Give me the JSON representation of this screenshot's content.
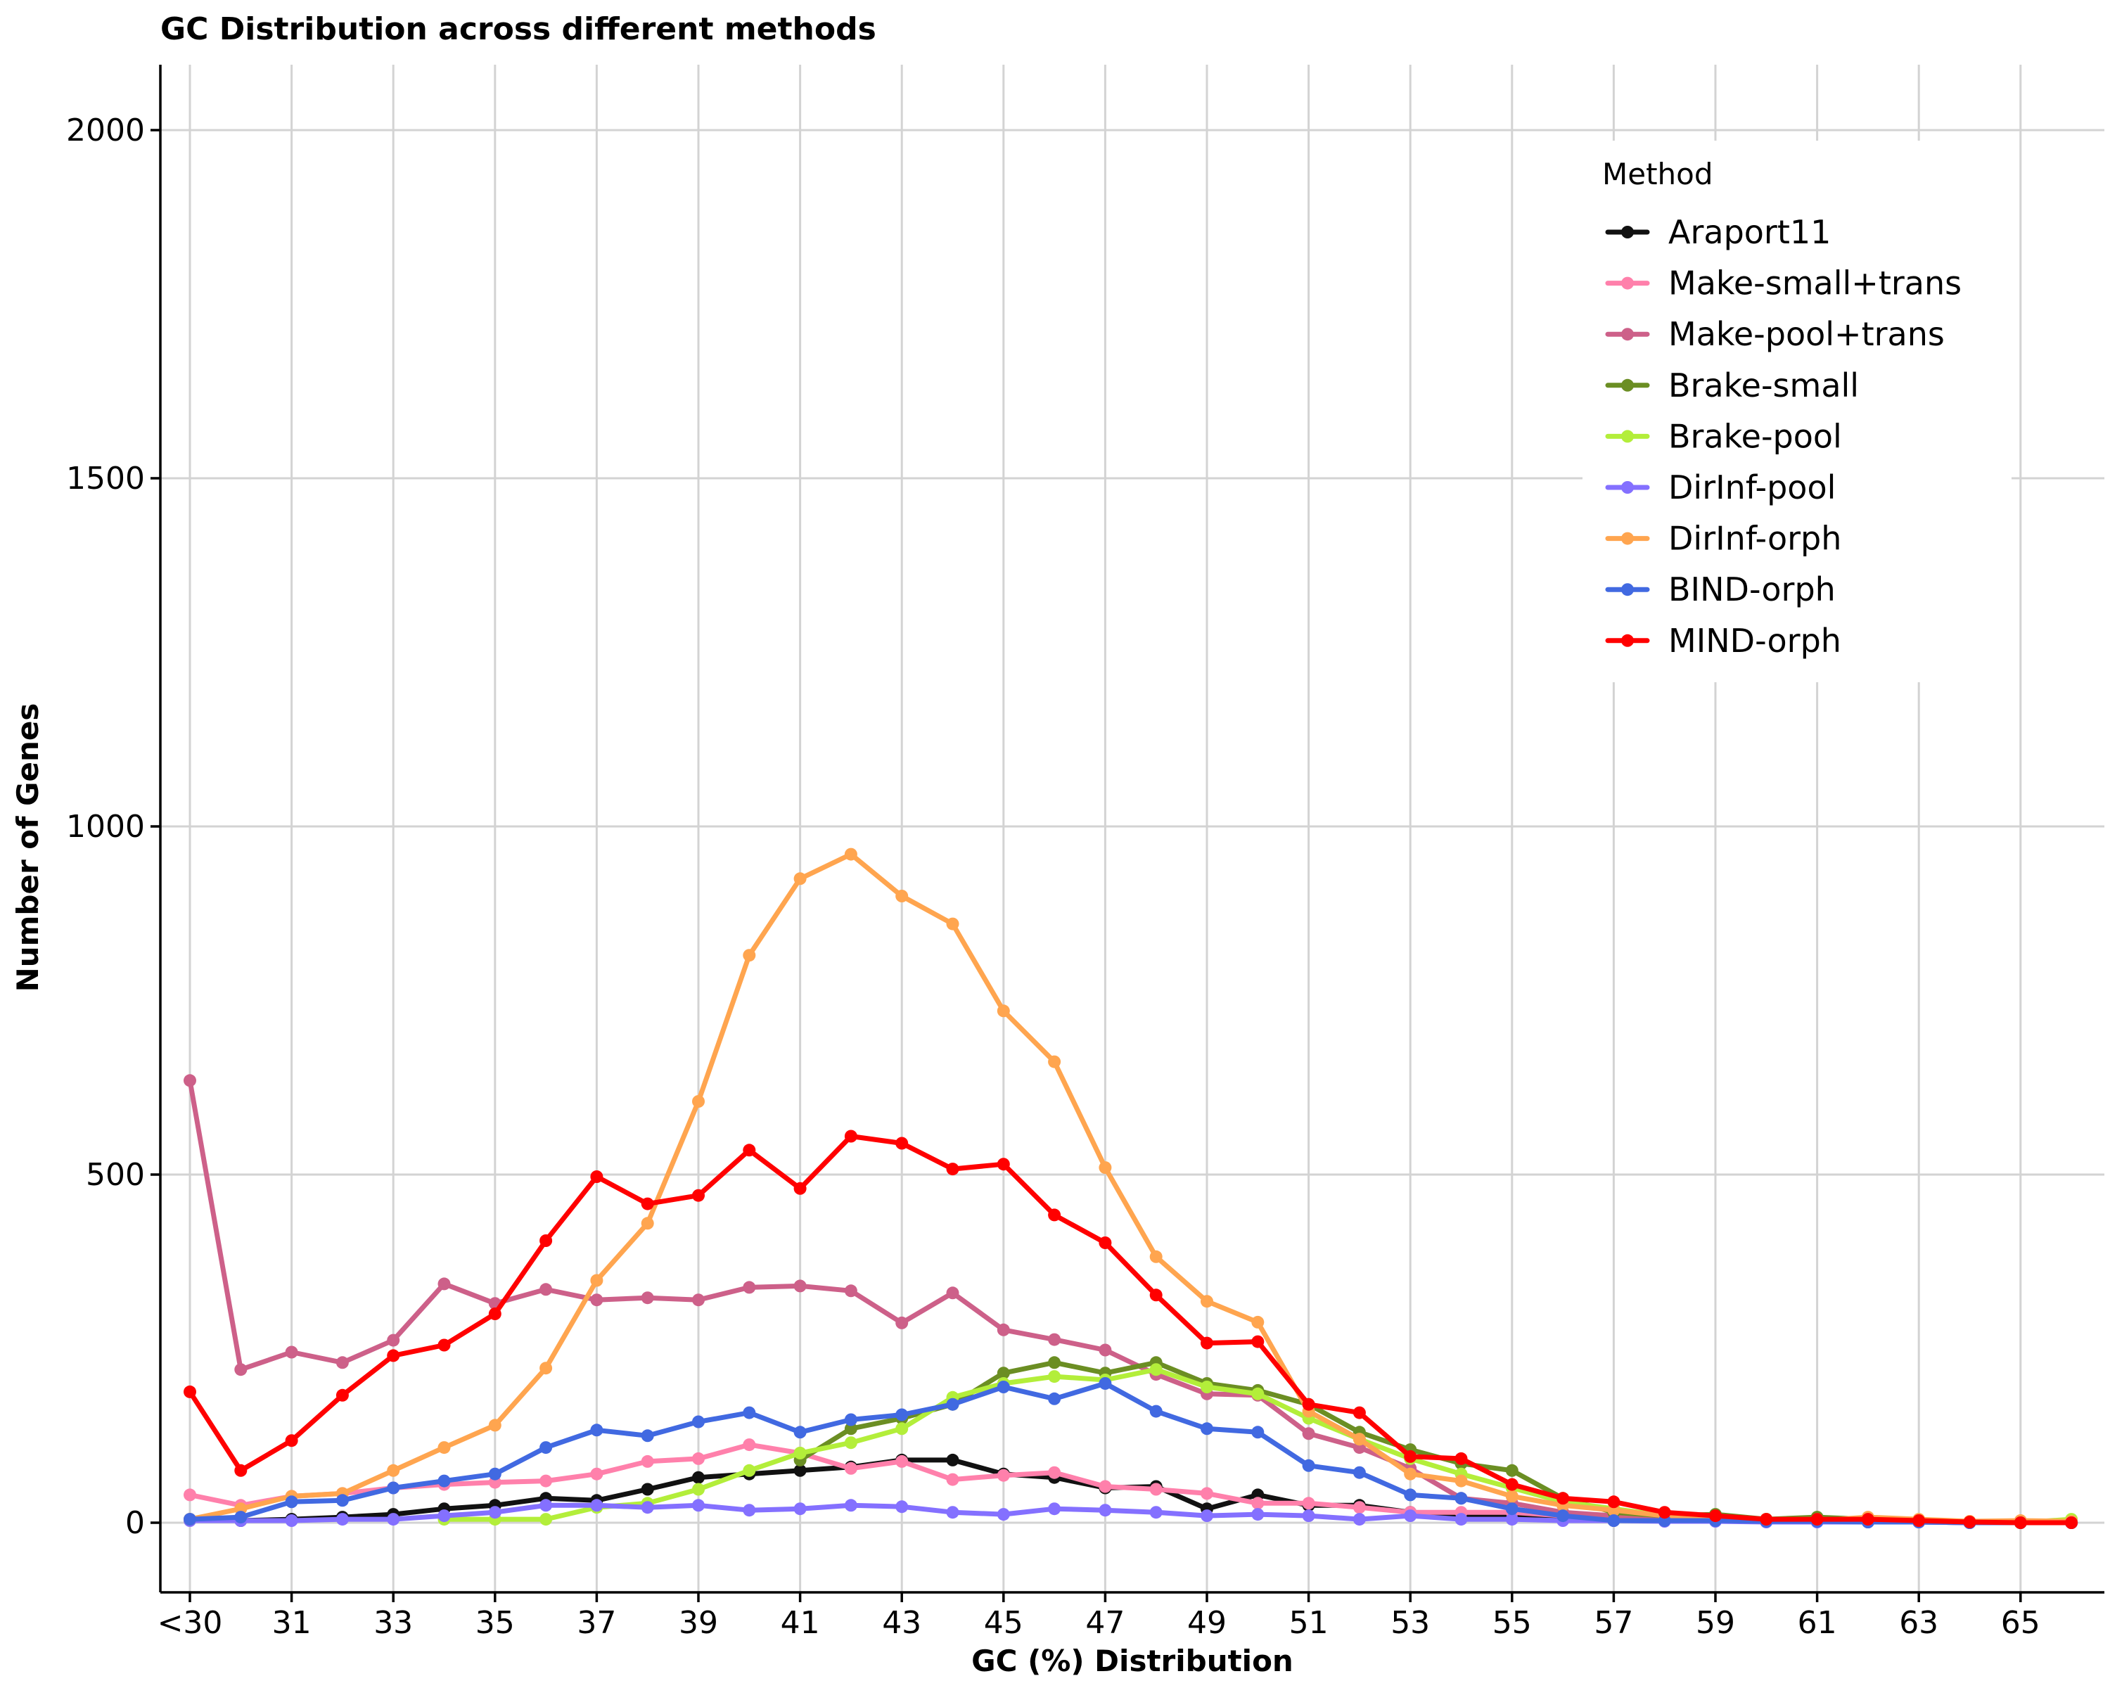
{
  "chart_data": {
    "type": "line",
    "title": "GC Distribution across different methods",
    "xlabel": "GC (%) Distribution",
    "ylabel": "Number of Genes",
    "ylim": [
      -100,
      2100
    ],
    "yticks": [
      0,
      500,
      1000,
      1500,
      2000
    ],
    "x": [
      "<30",
      "30",
      "31",
      "32",
      "33",
      "34",
      "35",
      "36",
      "37",
      "38",
      "39",
      "40",
      "41",
      "42",
      "43",
      "44",
      "45",
      "46",
      "47",
      "48",
      "49",
      "50",
      "51",
      "52",
      "53",
      "54",
      "55",
      "56",
      "57",
      "58",
      "59",
      "60",
      "61",
      "62",
      "63",
      "64",
      "65",
      "66"
    ],
    "xtick_labels": [
      "<30",
      "31",
      "33",
      "35",
      "37",
      "39",
      "41",
      "43",
      "45",
      "47",
      "49",
      "51",
      "53",
      "55",
      "57",
      "59",
      "61",
      "63",
      "65"
    ],
    "grid": true,
    "legend": {
      "title": "Method",
      "position": "top-right"
    },
    "series": [
      {
        "name": "Araport11",
        "color": "#111111",
        "values": [
          5,
          3,
          5,
          8,
          12,
          20,
          25,
          35,
          32,
          48,
          65,
          70,
          75,
          80,
          90,
          90,
          70,
          65,
          50,
          52,
          20,
          40,
          25,
          25,
          15,
          8,
          10,
          5,
          3,
          3,
          3,
          2,
          2,
          1,
          1,
          0,
          0,
          0
        ]
      },
      {
        "name": "Make-small+trans",
        "color": "#ff80ab",
        "values": [
          40,
          25,
          38,
          42,
          50,
          55,
          58,
          60,
          70,
          88,
          92,
          112,
          100,
          78,
          88,
          62,
          68,
          72,
          52,
          48,
          42,
          28,
          28,
          22,
          15,
          15,
          15,
          10,
          5,
          3,
          3,
          2,
          2,
          1,
          1,
          0,
          0,
          0
        ]
      },
      {
        "name": "Make-pool+trans",
        "color": "#cd6089",
        "values": [
          635,
          220,
          245,
          230,
          262,
          343,
          315,
          335,
          320,
          323,
          320,
          338,
          340,
          333,
          287,
          330,
          277,
          263,
          248,
          213,
          185,
          183,
          128,
          108,
          78,
          35,
          28,
          15,
          10,
          10,
          8,
          5,
          5,
          3,
          2,
          1,
          0,
          0
        ]
      },
      {
        "name": "Brake-small",
        "color": "#6b8e23",
        "values": [
          null,
          null,
          null,
          null,
          null,
          null,
          null,
          null,
          null,
          null,
          null,
          null,
          90,
          135,
          150,
          170,
          215,
          230,
          215,
          230,
          200,
          190,
          170,
          130,
          105,
          85,
          75,
          35,
          15,
          10,
          12,
          5,
          8,
          5,
          3,
          1,
          0,
          0
        ]
      },
      {
        "name": "Brake-pool",
        "color": "#b3ee3a",
        "values": [
          null,
          null,
          null,
          null,
          null,
          5,
          5,
          5,
          22,
          28,
          48,
          75,
          100,
          115,
          135,
          180,
          200,
          210,
          205,
          220,
          195,
          185,
          150,
          120,
          92,
          70,
          50,
          30,
          20,
          10,
          8,
          5,
          5,
          3,
          2,
          1,
          0,
          5
        ]
      },
      {
        "name": "DirInf-pool",
        "color": "#8470ff",
        "values": [
          3,
          3,
          3,
          5,
          5,
          10,
          15,
          25,
          25,
          22,
          25,
          18,
          20,
          25,
          23,
          15,
          12,
          20,
          18,
          15,
          10,
          12,
          10,
          5,
          10,
          5,
          5,
          3,
          3,
          2,
          2,
          1,
          1,
          1,
          1,
          0,
          0,
          0
        ]
      },
      {
        "name": "DirInf-orph",
        "color": "#ffa54f",
        "values": [
          5,
          20,
          38,
          42,
          75,
          108,
          140,
          222,
          348,
          430,
          605,
          815,
          925,
          960,
          900,
          860,
          735,
          662,
          510,
          382,
          318,
          288,
          160,
          120,
          70,
          60,
          38,
          25,
          18,
          10,
          5,
          3,
          3,
          8,
          5,
          2,
          3,
          2
        ]
      },
      {
        "name": "BIND-orph",
        "color": "#4169e1",
        "values": [
          5,
          8,
          30,
          32,
          50,
          60,
          70,
          108,
          133,
          125,
          145,
          158,
          130,
          148,
          155,
          170,
          195,
          178,
          200,
          160,
          135,
          130,
          82,
          72,
          40,
          35,
          20,
          10,
          3,
          3,
          3,
          2,
          2,
          1,
          1,
          0,
          0,
          0
        ]
      },
      {
        "name": "MIND-orph",
        "color": "#ff0000",
        "values": [
          188,
          75,
          118,
          183,
          240,
          255,
          300,
          405,
          497,
          458,
          470,
          535,
          480,
          555,
          545,
          508,
          515,
          442,
          402,
          327,
          258,
          260,
          170,
          158,
          95,
          92,
          55,
          35,
          30,
          15,
          10,
          5,
          5,
          5,
          3,
          1,
          0,
          0
        ]
      }
    ]
  }
}
